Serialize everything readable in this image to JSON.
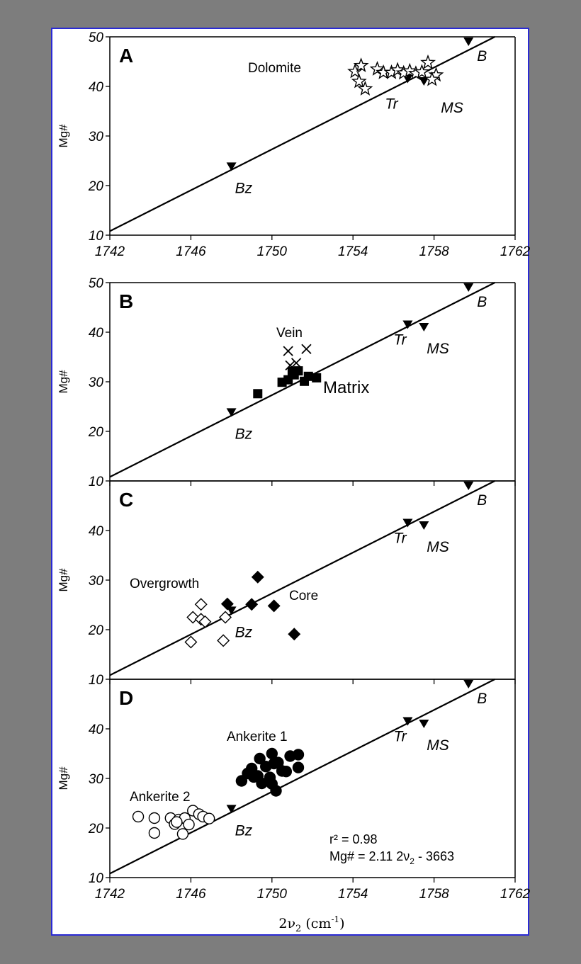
{
  "chart_data": {
    "type": "scatter",
    "x_axis": {
      "label_main": "2ν",
      "label_sub": "2",
      "label_unit_open": " (cm",
      "label_unit_sup": "-1",
      "label_unit_close": ")",
      "range": [
        1742,
        1762
      ],
      "ticks": [
        "1742",
        "1746",
        "1750",
        "1754",
        "1758",
        "1762"
      ],
      "tick_values": [
        1742,
        1746,
        1750,
        1754,
        1758,
        1762
      ]
    },
    "regression": {
      "r2_text": "r² = 0.98",
      "eq_prefix": "Mg# = 2.11 2ν",
      "eq_sub": "2",
      "eq_suffix": " - 3663",
      "x_range": [
        1742,
        1761
      ],
      "y_range": [
        10.8,
        50
      ]
    },
    "reference_points": [
      {
        "name": "B",
        "x": 1759.7,
        "y": 49
      },
      {
        "name": "Tr",
        "x": 1756.7,
        "y": 41.5
      },
      {
        "name": "MS",
        "x": 1757.5,
        "y": 41
      },
      {
        "name": "Bz",
        "x": 1748.0,
        "y": 23.8
      }
    ],
    "panels": [
      {
        "letter": "A",
        "ylabel": "Mg#",
        "ylim": [
          10,
          50
        ],
        "yticks": [
          "10",
          "20",
          "30",
          "40",
          "50"
        ],
        "ytick_values": [
          10,
          20,
          30,
          40,
          50
        ],
        "show_xticks": true,
        "labels": [
          {
            "text": "Dolomite",
            "role": "group"
          }
        ],
        "series": [
          {
            "name": "Dolomite",
            "marker": "star-open",
            "points": [
              [
                1754.1,
                43
              ],
              [
                1754.4,
                44.2
              ],
              [
                1754.3,
                41
              ],
              [
                1754.6,
                39.5
              ],
              [
                1755.2,
                43.5
              ],
              [
                1755.5,
                42.8
              ],
              [
                1755.9,
                42.8
              ],
              [
                1756.2,
                43.3
              ],
              [
                1756.5,
                42.7
              ],
              [
                1756.8,
                43.1
              ],
              [
                1757.1,
                42.6
              ],
              [
                1757.4,
                42.9
              ],
              [
                1757.7,
                44.8
              ],
              [
                1758.1,
                42.3
              ],
              [
                1757.9,
                41.4
              ]
            ]
          }
        ]
      },
      {
        "letter": "B",
        "ylabel": "Mg#",
        "ylim": [
          10,
          50
        ],
        "yticks": [
          "10",
          "20",
          "30",
          "40",
          "50"
        ],
        "ytick_values": [
          10,
          20,
          30,
          40,
          50
        ],
        "show_xticks": false,
        "labels": [
          {
            "text": "Vein",
            "role": "group"
          },
          {
            "text": "Matrix",
            "role": "matrix"
          }
        ],
        "series": [
          {
            "name": "Vein",
            "marker": "x",
            "points": [
              [
                1750.8,
                36.2
              ],
              [
                1751.7,
                36.6
              ],
              [
                1750.9,
                33.3
              ],
              [
                1751.2,
                33.8
              ]
            ]
          },
          {
            "name": "Matrix",
            "marker": "square-filled",
            "points": [
              [
                1749.3,
                27.6
              ],
              [
                1750.5,
                29.9
              ],
              [
                1750.8,
                30.4
              ],
              [
                1751.1,
                31.4
              ],
              [
                1751.3,
                32.2
              ],
              [
                1751.6,
                30.1
              ],
              [
                1751.8,
                31.1
              ],
              [
                1752.2,
                30.8
              ],
              [
                1751.0,
                32.1
              ]
            ]
          }
        ]
      },
      {
        "letter": "C",
        "ylabel": "Mg#",
        "ylim": [
          10,
          50
        ],
        "yticks": [
          "10",
          "20",
          "30",
          "40"
        ],
        "ytick_values": [
          10,
          20,
          30,
          40
        ],
        "show_xticks": false,
        "labels": [
          {
            "text": "Overgrowth",
            "role": "group"
          },
          {
            "text": "Core",
            "role": "group"
          }
        ],
        "series": [
          {
            "name": "Overgrowth",
            "marker": "diamond-open",
            "points": [
              [
                1746.1,
                22.5
              ],
              [
                1746.5,
                25.1
              ],
              [
                1746.5,
                22.1
              ],
              [
                1746.7,
                21.6
              ],
              [
                1746.0,
                17.5
              ],
              [
                1747.6,
                17.8
              ],
              [
                1747.7,
                22.5
              ]
            ]
          },
          {
            "name": "Core",
            "marker": "diamond-filled",
            "points": [
              [
                1747.8,
                25.2
              ],
              [
                1749.0,
                25.1
              ],
              [
                1749.3,
                30.6
              ],
              [
                1750.1,
                24.8
              ],
              [
                1751.1,
                19.1
              ]
            ]
          }
        ]
      },
      {
        "letter": "D",
        "ylabel": "Mg#",
        "ylim": [
          10,
          50
        ],
        "yticks": [
          "10",
          "20",
          "30",
          "40"
        ],
        "ytick_values": [
          10,
          20,
          30,
          40
        ],
        "show_xticks": true,
        "labels": [
          {
            "text": "Ankerite 1",
            "role": "group"
          },
          {
            "text": "Ankerite 2",
            "role": "group"
          }
        ],
        "show_equation": true,
        "series": [
          {
            "name": "Ankerite 1",
            "marker": "circle-filled",
            "points": [
              [
                1748.5,
                29.5
              ],
              [
                1748.8,
                31
              ],
              [
                1749.0,
                32
              ],
              [
                1749.3,
                30.5
              ],
              [
                1749.5,
                29
              ],
              [
                1749.4,
                34
              ],
              [
                1749.7,
                32.4
              ],
              [
                1749.9,
                30.2
              ],
              [
                1750.0,
                28.9
              ],
              [
                1750.1,
                33
              ],
              [
                1750.0,
                35
              ],
              [
                1750.3,
                33.2
              ],
              [
                1750.5,
                31.5
              ],
              [
                1750.7,
                31.4
              ],
              [
                1750.9,
                34.5
              ],
              [
                1751.3,
                34.8
              ],
              [
                1751.3,
                32.2
              ],
              [
                1750.2,
                27.5
              ],
              [
                1749.1,
                30.3
              ]
            ]
          },
          {
            "name": "Ankerite 2",
            "marker": "circle-open",
            "points": [
              [
                1743.4,
                22.3
              ],
              [
                1744.2,
                22
              ],
              [
                1744.2,
                19
              ],
              [
                1745.0,
                22
              ],
              [
                1745.2,
                20.8
              ],
              [
                1745.4,
                21.7
              ],
              [
                1745.7,
                22
              ],
              [
                1745.9,
                20.7
              ],
              [
                1745.6,
                18.8
              ],
              [
                1746.1,
                23.5
              ],
              [
                1746.4,
                22.8
              ],
              [
                1746.6,
                22.3
              ],
              [
                1746.9,
                21.9
              ],
              [
                1745.3,
                21.2
              ]
            ]
          }
        ]
      }
    ]
  }
}
